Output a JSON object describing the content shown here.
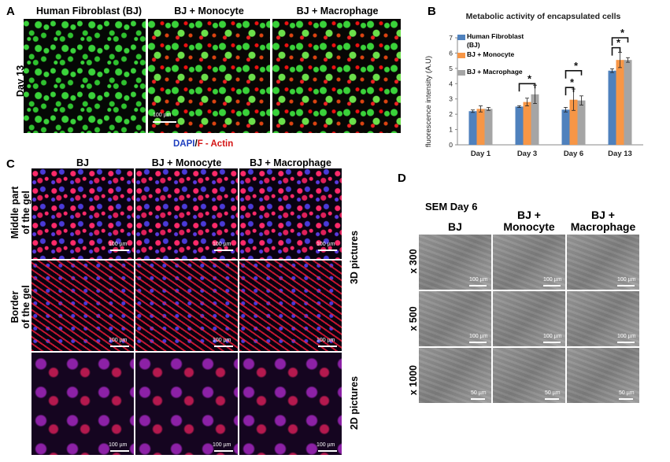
{
  "panels": {
    "a": "A",
    "b": "B",
    "c": "C",
    "d": "D"
  },
  "panel_a": {
    "columns": [
      "Human Fibroblast (BJ)",
      "BJ + Monocyte",
      "BJ + Macrophage"
    ],
    "row_label": "Day 13",
    "scale_text": "100 µm",
    "legend_dapi": "DAPI",
    "legend_sep": "/",
    "legend_actin": "F - Actin"
  },
  "panel_c": {
    "columns": [
      "BJ",
      "BJ + Monocyte",
      "BJ + Macrophage"
    ],
    "row_middle": [
      "Middle part",
      "of the gel"
    ],
    "row_border": [
      "Border",
      "of the gel"
    ],
    "side_3d": "3D pictures",
    "side_2d": "2D pictures",
    "scale_text": "100 µm"
  },
  "panel_d": {
    "title": "SEM Day 6",
    "columns": [
      [
        "BJ"
      ],
      [
        "BJ +",
        "Monocyte"
      ],
      [
        "BJ +",
        "Macrophage"
      ]
    ],
    "rows": [
      "x 300",
      "x 500",
      "x 1000"
    ],
    "scale_100": "100 µm",
    "scale_50": "50 µm"
  },
  "chart_data": {
    "type": "bar",
    "title": "Metabolic activity of encapsulated cells",
    "ylabel": "fluorescence intensity (A.U)",
    "xlabel": "",
    "ylim": [
      0,
      7
    ],
    "yticks": [
      0,
      1,
      2,
      3,
      4,
      5,
      6,
      7
    ],
    "categories": [
      "Day 1",
      "Day 3",
      "Day 6",
      "Day 13"
    ],
    "series": [
      {
        "name": "Human Fibroblast (BJ)",
        "color": "#4f81bd",
        "values": [
          2.2,
          2.5,
          2.3,
          4.85
        ],
        "errors": [
          0.08,
          0.06,
          0.15,
          0.12
        ]
      },
      {
        "name": "BJ + Monocyte",
        "color": "#f79646",
        "values": [
          2.35,
          2.8,
          2.95,
          5.55
        ],
        "errors": [
          0.2,
          0.25,
          0.7,
          0.5
        ]
      },
      {
        "name": "BJ + Macrophage",
        "color": "#a5a5a5",
        "values": [
          2.35,
          3.3,
          2.9,
          5.55
        ],
        "errors": [
          0.1,
          0.6,
          0.3,
          0.15
        ]
      }
    ],
    "significance_marker": "*",
    "legend_position": "top-left"
  }
}
